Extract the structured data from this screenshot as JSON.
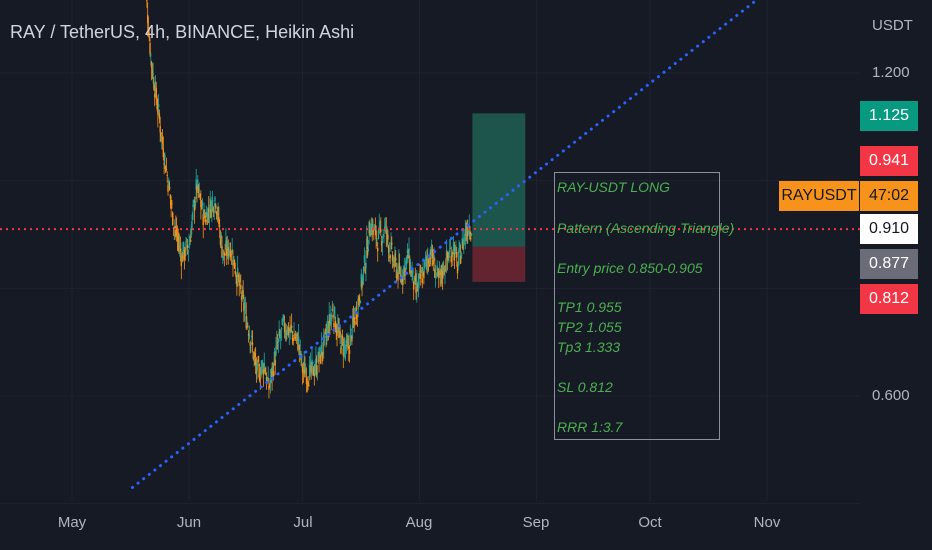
{
  "chart_title": "RAY / TetherUS, 4h, BINANCE, Heikin Ashi",
  "currency_label": "USDT",
  "y_ticks": [
    "1.200",
    "0.600"
  ],
  "x_ticks": [
    "May",
    "Jun",
    "Jul",
    "Aug",
    "Sep",
    "Oct",
    "Nov"
  ],
  "price_labels": [
    {
      "text": "1.125",
      "role": "take-profit",
      "bg": "#089981",
      "fg": "#ffffff"
    },
    {
      "text": "0.941",
      "role": "high",
      "bg": "#f23645",
      "fg": "#ffffff"
    },
    {
      "text": "47:02",
      "role": "countdown",
      "bg": "#f7931a",
      "fg": "#161a25"
    },
    {
      "text": "0.910",
      "role": "current",
      "bg": "#ffffff",
      "fg": "#131722"
    },
    {
      "text": "0.877",
      "role": "entry",
      "bg": "#6a6d78",
      "fg": "#ffffff"
    },
    {
      "text": "0.812",
      "role": "stop-loss",
      "bg": "#f23645",
      "fg": "#ffffff"
    }
  ],
  "symbol_tag": "RAYUSDT",
  "note": {
    "lines": [
      "RAY-USDT LONG",
      "Pattern (Ascending Triangle)",
      "Entry price 0.850-0.905",
      "TP1 0.955",
      "TP2 1.055",
      "Tp3  1.333",
      "SL 0.812",
      "RRR 1:3.7"
    ]
  },
  "colors": {
    "background": "#161a25",
    "up": "#26a69a",
    "down": "#f7931a",
    "trendline": "#2962ff",
    "current_price_line": "#f23645",
    "profit_zone": "#1e5c51",
    "loss_zone": "#6b2632",
    "note_text": "#4caf50"
  },
  "chart_data": {
    "type": "candlestick",
    "style": "Heikin Ashi",
    "interval": "4h",
    "exchange": "BINANCE",
    "symbol": "RAYUSDT",
    "x_ticks": [
      "May",
      "Jun",
      "Jul",
      "Aug",
      "Sep",
      "Oct",
      "Nov"
    ],
    "y_ticks": [
      1.2,
      0.6
    ],
    "current_price": 0.91,
    "price_path": [
      [
        "May 20",
        1.4
      ],
      [
        "May 22",
        1.22
      ],
      [
        "May 24",
        1.12
      ],
      [
        "May 26",
        1.02
      ],
      [
        "May 28",
        0.92
      ],
      [
        "May 30",
        0.86
      ],
      [
        "Jun 1",
        0.88
      ],
      [
        "Jun 3",
        0.99
      ],
      [
        "Jun 5",
        0.93
      ],
      [
        "Jun 8",
        0.97
      ],
      [
        "Jun 10",
        0.86
      ],
      [
        "Jun 12",
        0.88
      ],
      [
        "Jun 15",
        0.78
      ],
      [
        "Jun 17",
        0.72
      ],
      [
        "Jun 19",
        0.64
      ],
      [
        "Jun 21",
        0.66
      ],
      [
        "Jun 22",
        0.61
      ],
      [
        "Jun 24",
        0.68
      ],
      [
        "Jun 26",
        0.73
      ],
      [
        "Jun 28",
        0.72
      ],
      [
        "Jun 30",
        0.7
      ],
      [
        "Jul 1",
        0.65
      ],
      [
        "Jul 3",
        0.64
      ],
      [
        "Jul 5",
        0.66
      ],
      [
        "Jul 7",
        0.7
      ],
      [
        "Jul 9",
        0.76
      ],
      [
        "Jul 11",
        0.7
      ],
      [
        "Jul 13",
        0.68
      ],
      [
        "Jul 15",
        0.75
      ],
      [
        "Jul 17",
        0.82
      ],
      [
        "Jul 19",
        0.92
      ],
      [
        "Jul 21",
        0.89
      ],
      [
        "Jul 23",
        0.91
      ],
      [
        "Jul 25",
        0.85
      ],
      [
        "Jul 27",
        0.82
      ],
      [
        "Jul 29",
        0.86
      ],
      [
        "Jul 31",
        0.79
      ],
      [
        "Aug 2",
        0.83
      ],
      [
        "Aug 4",
        0.87
      ],
      [
        "Aug 6",
        0.81
      ],
      [
        "Aug 8",
        0.85
      ],
      [
        "Aug 10",
        0.88
      ],
      [
        "Aug 11",
        0.84
      ],
      [
        "Aug 13",
        0.9
      ],
      [
        "Aug 14",
        0.92
      ],
      [
        "Aug 15",
        0.91
      ]
    ],
    "trendline": [
      [
        "May 17",
        0.43
      ],
      [
        "Nov 10",
        1.4
      ]
    ],
    "position": {
      "side": "long",
      "entry": 0.877,
      "take_profit": 1.125,
      "stop_loss": 0.812,
      "start": "Aug 15",
      "end": "Aug 29"
    }
  }
}
